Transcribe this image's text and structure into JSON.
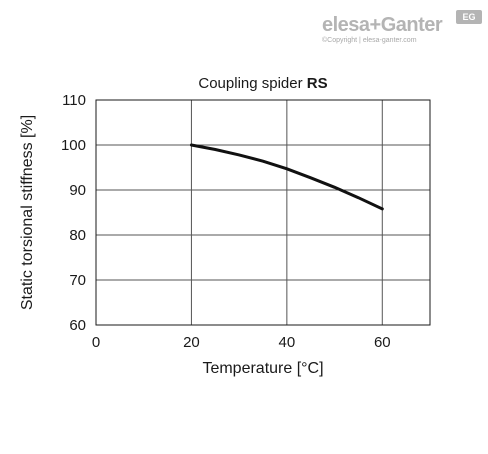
{
  "brand": {
    "logo_text": "elesa+Ganter",
    "badge": "EG",
    "copyright": "©Copyright | elesa-ganter.com"
  },
  "chart_data": {
    "type": "line",
    "title_prefix": "Coupling spider ",
    "title_bold": "RS",
    "xlabel": "Temperature [°C]",
    "ylabel": "Static torsional stiffness [%]",
    "xlim": [
      0,
      70
    ],
    "ylim": [
      60,
      110
    ],
    "xticks": [
      0,
      20,
      40,
      60
    ],
    "yticks": [
      60,
      70,
      80,
      90,
      100,
      110
    ],
    "grid": true,
    "series": [
      {
        "x": [
          20,
          25,
          30,
          35,
          40,
          45,
          50,
          55,
          60
        ],
        "y": [
          100,
          99,
          97.8,
          96.4,
          94.7,
          92.7,
          90.6,
          88.3,
          85.8
        ],
        "color": "#111111"
      }
    ]
  }
}
